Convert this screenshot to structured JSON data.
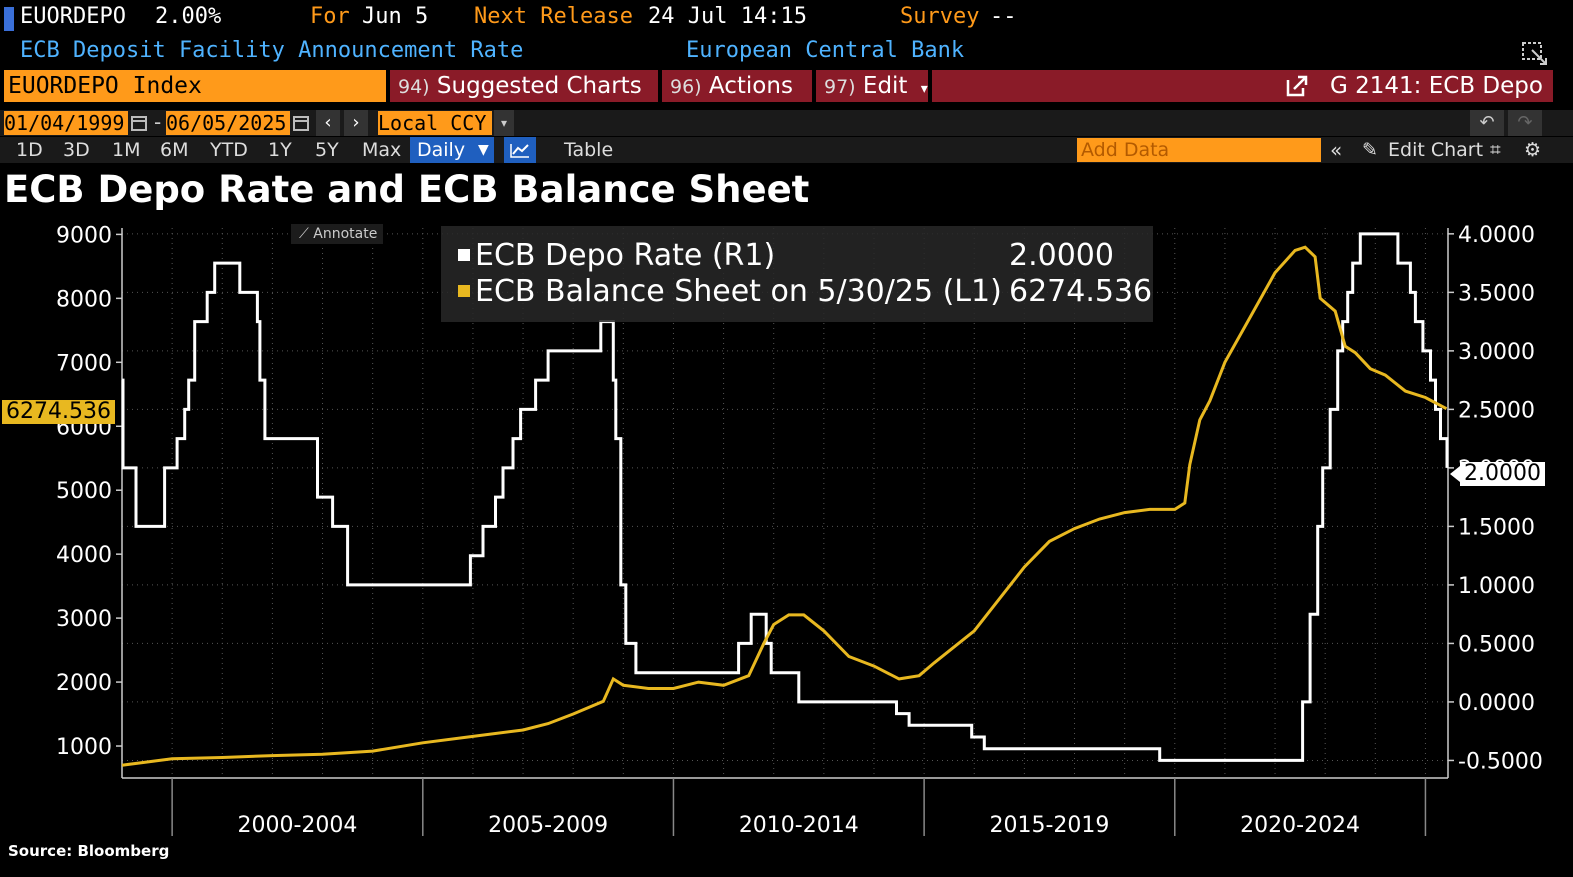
{
  "header": {
    "ticker": "EUORDEPO",
    "value": "2.00%",
    "for_label": "For",
    "for_date": "Jun 5",
    "next_release_label": "Next Release",
    "next_release_value": "24 Jul 14:15",
    "survey_label": "Survey",
    "survey_value": "--",
    "description": "ECB Deposit Facility Announcement Rate",
    "source_name": "European Central Bank"
  },
  "toolbar": {
    "security_input": "EUORDEPO Index",
    "suggested_num": "94)",
    "suggested_label": "Suggested Charts",
    "actions_num": "96)",
    "actions_label": "Actions",
    "edit_num": "97)",
    "edit_label": "Edit",
    "chart_id": "G 2141: ECB Depo",
    "start_date": "01/04/1999",
    "end_date": "06/05/2025",
    "date_sep": "-",
    "currency": "Local CCY",
    "periods": [
      "1D",
      "3D",
      "1M",
      "6M",
      "YTD",
      "1Y",
      "5Y",
      "Max"
    ],
    "frequency": "Daily",
    "table_label": "Table",
    "add_data_placeholder": "Add Data",
    "edit_chart_label": "Edit Chart",
    "annotate_label": "Annotate"
  },
  "chart_data": {
    "type": "line",
    "title": "ECB Depo Rate and ECB Balance Sheet",
    "source": "Source: Bloomberg",
    "x_period_labels": [
      "2000-2004",
      "2005-2009",
      "2010-2014",
      "2015-2019",
      "2020-2024"
    ],
    "x_range": [
      1999.0,
      2025.45
    ],
    "y_left": {
      "range": [
        500,
        9100
      ],
      "ticks": [
        1000,
        2000,
        3000,
        4000,
        5000,
        6000,
        7000,
        8000,
        9000
      ]
    },
    "y_right": {
      "range": [
        -0.65,
        4.05
      ],
      "ticks": [
        "-0.5000",
        "0.0000",
        "0.5000",
        "1.0000",
        "1.5000",
        "2.0000",
        "2.5000",
        "3.0000",
        "3.5000",
        "4.0000"
      ]
    },
    "legend": [
      {
        "name": "ECB Depo Rate (R1)",
        "value": "2.0000",
        "color": "#ffffff"
      },
      {
        "name": "ECB Balance Sheet on 5/30/25 (L1)",
        "value": "6274.536",
        "color": "#e8b820"
      }
    ],
    "last_value_left": "6274.536",
    "last_value_right": "2.0000",
    "series": [
      {
        "name": "ECB Depo Rate (R1)",
        "axis": "right",
        "color": "#ffffff",
        "step": true,
        "points": [
          [
            1999.0,
            2.75
          ],
          [
            1999.02,
            2.0
          ],
          [
            1999.28,
            1.5
          ],
          [
            1999.85,
            2.0
          ],
          [
            2000.1,
            2.25
          ],
          [
            2000.25,
            2.5
          ],
          [
            2000.33,
            2.75
          ],
          [
            2000.45,
            3.25
          ],
          [
            2000.7,
            3.5
          ],
          [
            2000.85,
            3.75
          ],
          [
            2001.35,
            3.5
          ],
          [
            2001.7,
            3.25
          ],
          [
            2001.75,
            2.75
          ],
          [
            2001.85,
            2.25
          ],
          [
            2002.9,
            1.75
          ],
          [
            2003.2,
            1.5
          ],
          [
            2003.5,
            1.0
          ],
          [
            2005.95,
            1.25
          ],
          [
            2006.2,
            1.5
          ],
          [
            2006.45,
            1.75
          ],
          [
            2006.6,
            2.0
          ],
          [
            2006.8,
            2.25
          ],
          [
            2006.95,
            2.5
          ],
          [
            2007.25,
            2.75
          ],
          [
            2007.5,
            3.0
          ],
          [
            2008.55,
            3.25
          ],
          [
            2008.8,
            2.75
          ],
          [
            2008.85,
            2.25
          ],
          [
            2008.95,
            1.0
          ],
          [
            2009.05,
            0.5
          ],
          [
            2009.25,
            0.25
          ],
          [
            2011.3,
            0.5
          ],
          [
            2011.55,
            0.75
          ],
          [
            2011.85,
            0.5
          ],
          [
            2011.95,
            0.25
          ],
          [
            2012.5,
            0.0
          ],
          [
            2014.45,
            -0.1
          ],
          [
            2014.7,
            -0.2
          ],
          [
            2015.95,
            -0.3
          ],
          [
            2016.2,
            -0.4
          ],
          [
            2019.7,
            -0.5
          ],
          [
            2022.55,
            0.0
          ],
          [
            2022.7,
            0.75
          ],
          [
            2022.85,
            1.5
          ],
          [
            2022.95,
            2.0
          ],
          [
            2023.1,
            2.5
          ],
          [
            2023.25,
            3.0
          ],
          [
            2023.35,
            3.25
          ],
          [
            2023.45,
            3.5
          ],
          [
            2023.55,
            3.75
          ],
          [
            2023.7,
            4.0
          ],
          [
            2024.45,
            3.75
          ],
          [
            2024.7,
            3.5
          ],
          [
            2024.8,
            3.25
          ],
          [
            2024.95,
            3.0
          ],
          [
            2025.1,
            2.75
          ],
          [
            2025.2,
            2.5
          ],
          [
            2025.3,
            2.25
          ],
          [
            2025.43,
            2.0
          ]
        ]
      },
      {
        "name": "ECB Balance Sheet (L1)",
        "axis": "left",
        "color": "#e8b820",
        "step": false,
        "points": [
          [
            1999.0,
            700
          ],
          [
            2000.0,
            800
          ],
          [
            2001.0,
            820
          ],
          [
            2002.0,
            850
          ],
          [
            2003.0,
            870
          ],
          [
            2004.0,
            920
          ],
          [
            2005.0,
            1050
          ],
          [
            2006.0,
            1150
          ],
          [
            2007.0,
            1250
          ],
          [
            2007.5,
            1350
          ],
          [
            2008.0,
            1500
          ],
          [
            2008.6,
            1700
          ],
          [
            2008.8,
            2050
          ],
          [
            2009.0,
            1950
          ],
          [
            2009.5,
            1900
          ],
          [
            2010.0,
            1900
          ],
          [
            2010.5,
            2000
          ],
          [
            2011.0,
            1950
          ],
          [
            2011.5,
            2100
          ],
          [
            2011.8,
            2600
          ],
          [
            2012.0,
            2900
          ],
          [
            2012.3,
            3050
          ],
          [
            2012.6,
            3050
          ],
          [
            2013.0,
            2800
          ],
          [
            2013.5,
            2400
          ],
          [
            2014.0,
            2250
          ],
          [
            2014.5,
            2050
          ],
          [
            2014.9,
            2100
          ],
          [
            2015.2,
            2300
          ],
          [
            2016.0,
            2800
          ],
          [
            2016.5,
            3300
          ],
          [
            2017.0,
            3800
          ],
          [
            2017.5,
            4200
          ],
          [
            2018.0,
            4400
          ],
          [
            2018.5,
            4550
          ],
          [
            2019.0,
            4650
          ],
          [
            2019.5,
            4700
          ],
          [
            2020.0,
            4700
          ],
          [
            2020.2,
            4800
          ],
          [
            2020.3,
            5400
          ],
          [
            2020.5,
            6100
          ],
          [
            2020.7,
            6400
          ],
          [
            2021.0,
            7000
          ],
          [
            2021.5,
            7700
          ],
          [
            2022.0,
            8400
          ],
          [
            2022.4,
            8750
          ],
          [
            2022.6,
            8800
          ],
          [
            2022.8,
            8650
          ],
          [
            2022.9,
            8000
          ],
          [
            2023.2,
            7800
          ],
          [
            2023.4,
            7250
          ],
          [
            2023.6,
            7150
          ],
          [
            2023.9,
            6900
          ],
          [
            2024.2,
            6800
          ],
          [
            2024.6,
            6550
          ],
          [
            2025.0,
            6450
          ],
          [
            2025.42,
            6274.536
          ]
        ]
      }
    ]
  },
  "colors": {
    "orange": "#ff9a1a",
    "menu_red": "#8a1b28",
    "blue_text": "#4fb3ff",
    "gold": "#e8b820",
    "daily_blue": "#1f5fbf"
  },
  "icons": [
    "calendar-icon",
    "chevron-left-icon",
    "chevron-right-icon",
    "undo-icon",
    "redo-icon",
    "line-chart-icon",
    "pencil-icon",
    "settings-gear-icon",
    "external-link-icon",
    "double-chevron-icon",
    "expand-icon"
  ]
}
